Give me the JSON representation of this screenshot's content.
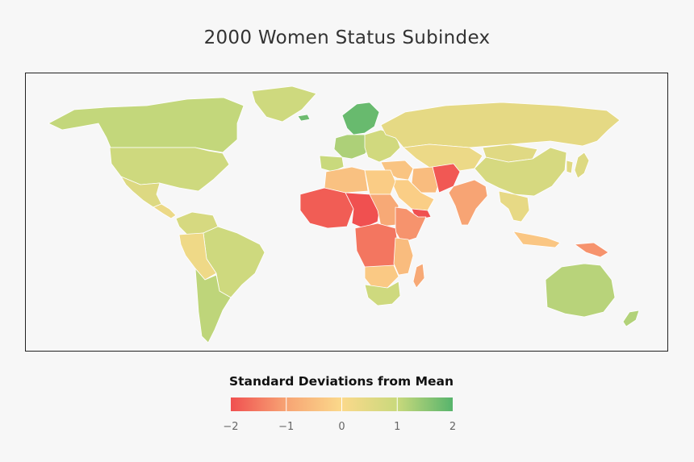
{
  "title": "2000 Women Status Subindex",
  "legend": {
    "title": "Standard Deviations from Mean",
    "min": -2,
    "max": 2,
    "ticks": [
      {
        "value": -2,
        "label": "−2"
      },
      {
        "value": -1,
        "label": "−1"
      },
      {
        "value": 0,
        "label": "0"
      },
      {
        "value": 1,
        "label": "1"
      },
      {
        "value": 2,
        "label": "2"
      }
    ],
    "colors": [
      "#f05050",
      "#f7a474",
      "#fbd98b",
      "#c9d97c",
      "#57b46c"
    ]
  },
  "regions": [
    {
      "name": "canada",
      "value": 1.05
    },
    {
      "name": "usa",
      "value": 0.9
    },
    {
      "name": "mexico",
      "value": 0.6
    },
    {
      "name": "central-america",
      "value": 0.3
    },
    {
      "name": "greenland",
      "value": 0.9
    },
    {
      "name": "colombia-venezuela",
      "value": 0.75
    },
    {
      "name": "brazil",
      "value": 0.9
    },
    {
      "name": "peru-bolivia",
      "value": 0.25
    },
    {
      "name": "argentina-chile",
      "value": 1.1
    },
    {
      "name": "iceland",
      "value": 1.8
    },
    {
      "name": "scandinavia",
      "value": 1.85
    },
    {
      "name": "western-europe",
      "value": 1.25
    },
    {
      "name": "iberia",
      "value": 1.0
    },
    {
      "name": "eastern-europe",
      "value": 0.85
    },
    {
      "name": "russia",
      "value": 0.45
    },
    {
      "name": "north-africa",
      "value": -0.45
    },
    {
      "name": "egypt-libya",
      "value": -0.25
    },
    {
      "name": "west-africa",
      "value": -1.85
    },
    {
      "name": "sahel",
      "value": -2.0
    },
    {
      "name": "sudan",
      "value": -0.9
    },
    {
      "name": "horn-of-africa",
      "value": -1.2
    },
    {
      "name": "central-africa",
      "value": -1.55
    },
    {
      "name": "east-africa",
      "value": -0.55
    },
    {
      "name": "angola-zambia",
      "value": -0.3
    },
    {
      "name": "southern-africa",
      "value": 0.9
    },
    {
      "name": "madagascar",
      "value": -0.9
    },
    {
      "name": "turkey-levant",
      "value": -0.4
    },
    {
      "name": "arabia",
      "value": -0.2
    },
    {
      "name": "yemen",
      "value": -2.0
    },
    {
      "name": "iran",
      "value": -0.55
    },
    {
      "name": "afghanistan-pakistan",
      "value": -1.9
    },
    {
      "name": "central-asia",
      "value": 0.3
    },
    {
      "name": "india",
      "value": -1.0
    },
    {
      "name": "china",
      "value": 0.75
    },
    {
      "name": "mongolia",
      "value": 0.55
    },
    {
      "name": "southeast-asia",
      "value": 0.4
    },
    {
      "name": "indonesia",
      "value": -0.35
    },
    {
      "name": "papua-new-guinea",
      "value": -1.2
    },
    {
      "name": "japan",
      "value": 0.6
    },
    {
      "name": "korea",
      "value": 0.55
    },
    {
      "name": "australia",
      "value": 1.15
    },
    {
      "name": "new-zealand",
      "value": 1.2
    }
  ]
}
